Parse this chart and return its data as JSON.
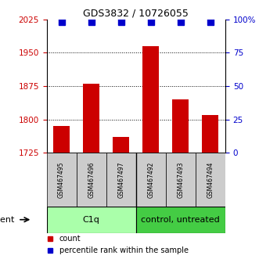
{
  "title": "GDS3832 / 10726055",
  "samples": [
    "GSM467495",
    "GSM467496",
    "GSM467497",
    "GSM467492",
    "GSM467493",
    "GSM467494"
  ],
  "bar_values": [
    1785,
    1880,
    1760,
    1965,
    1845,
    1810
  ],
  "percentile_pct": 98,
  "bar_color": "#cc0000",
  "percentile_color": "#0000cc",
  "ylim_left": [
    1725,
    2025
  ],
  "ylim_right": [
    0,
    100
  ],
  "yticks_left": [
    1725,
    1800,
    1875,
    1950,
    2025
  ],
  "yticks_right": [
    0,
    25,
    50,
    75,
    100
  ],
  "ytick_labels_right": [
    "0",
    "25",
    "50",
    "75",
    "100%"
  ],
  "grid_values": [
    1800,
    1875,
    1950
  ],
  "groups": [
    {
      "label": "C1q",
      "start": 0,
      "end": 3,
      "color": "#aaffaa"
    },
    {
      "label": "control, untreated",
      "start": 3,
      "end": 6,
      "color": "#44cc44"
    }
  ],
  "agent_label": "agent",
  "legend_count_label": "count",
  "legend_percentile_label": "percentile rank within the sample",
  "bar_width": 0.55,
  "left_tick_color": "#cc0000",
  "right_tick_color": "#0000cc",
  "sample_box_color": "#cccccc",
  "title_fontsize": 9,
  "tick_fontsize": 7.5,
  "sample_fontsize": 5.5,
  "group_fontsize": 8,
  "legend_fontsize": 7,
  "agent_fontsize": 8
}
